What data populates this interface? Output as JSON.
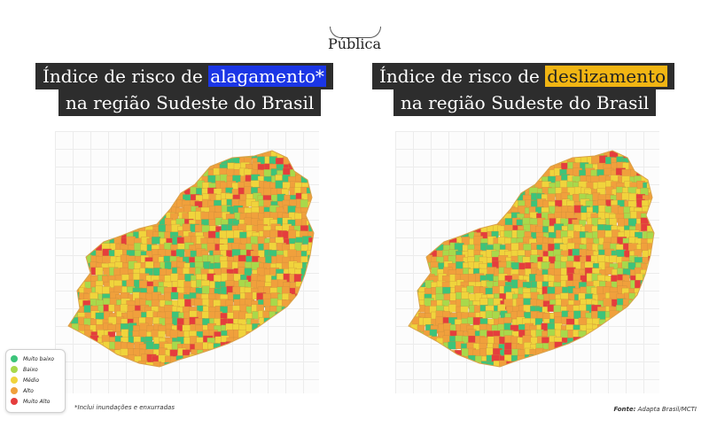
{
  "brand": "Pública",
  "left_map": {
    "title_prefix": "Índice de risco de ",
    "title_highlight": "alagamento*",
    "title_line2": "na região Sudeste do Brasil",
    "highlight_color": "#1b36e6",
    "fill_mix": {
      "green": 0.12,
      "lightgreen": 0.1,
      "yellow": 0.28,
      "orange": 0.42,
      "red": 0.08
    }
  },
  "right_map": {
    "title_prefix": "Índice de risco de ",
    "title_highlight": "deslizamento",
    "title_line2": "na região Sudeste do Brasil",
    "highlight_color": "#f1b513",
    "fill_mix": {
      "green": 0.14,
      "lightgreen": 0.16,
      "yellow": 0.28,
      "orange": 0.35,
      "red": 0.07
    }
  },
  "legend": {
    "items": [
      {
        "label": "Muito baixo",
        "color": "#3cc47a"
      },
      {
        "label": "Baixo",
        "color": "#a8d94b"
      },
      {
        "label": "Médio",
        "color": "#f0d43c"
      },
      {
        "label": "Alto",
        "color": "#f0a03c"
      },
      {
        "label": "Muito Alto",
        "color": "#e53d3d"
      }
    ]
  },
  "footnote": "*Inclui inundações e enxurradas",
  "source": {
    "label": "Fonte:",
    "text": " Adapta Brasil/MCTI"
  }
}
